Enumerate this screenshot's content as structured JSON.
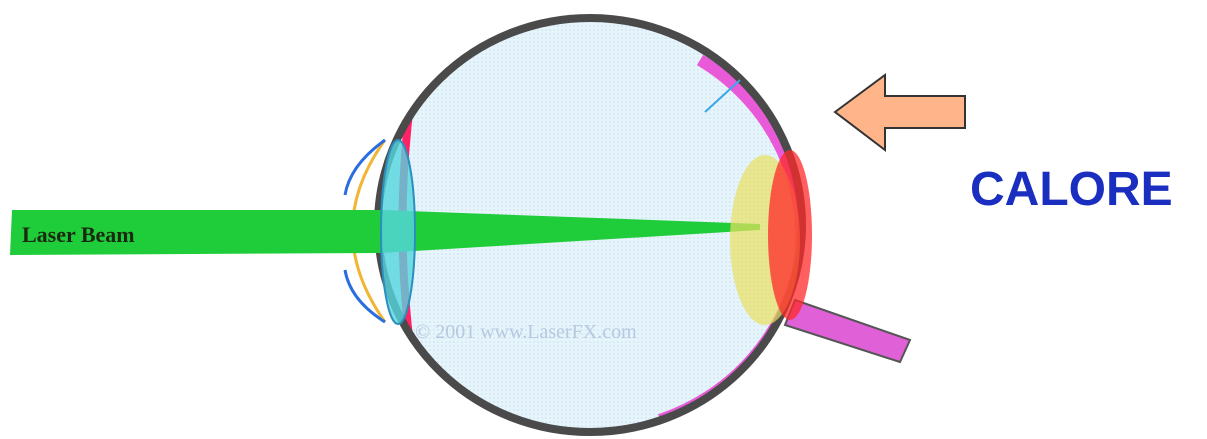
{
  "labels": {
    "beam": "Laser Beam",
    "heat": "CALORE",
    "watermark": "© 2001 www.LaserFX.com"
  }
}
